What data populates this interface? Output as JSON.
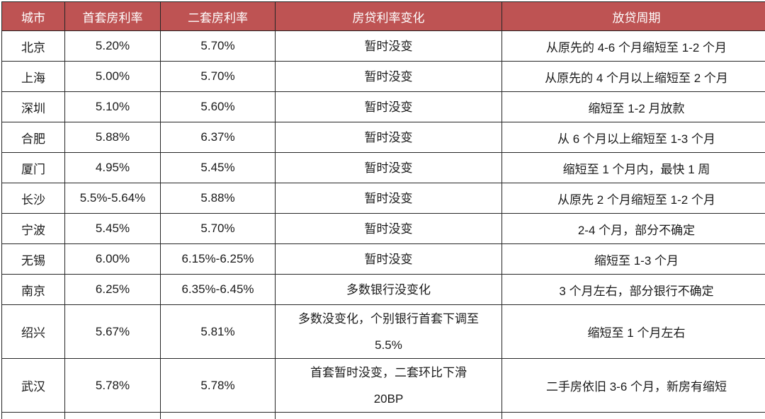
{
  "colors": {
    "page_bg": "#ffffff",
    "header_bg": "#be5353",
    "header_text": "#ffffff",
    "border": "#262626",
    "body_text": "#1a1a1a"
  },
  "chart_data": {
    "type": "table",
    "columns": [
      "城市",
      "首套房利率",
      "二套房利率",
      "房贷利率变化",
      "放贷周期"
    ],
    "rows": [
      {
        "city": "北京",
        "first_rate": "5.20%",
        "second_rate": "5.70%",
        "change": "暂时没变",
        "period": "从原先的 4-6 个月缩短至 1-2 个月"
      },
      {
        "city": "上海",
        "first_rate": "5.00%",
        "second_rate": "5.70%",
        "change": "暂时没变",
        "period": "从原先的 4 个月以上缩短至 2 个月"
      },
      {
        "city": "深圳",
        "first_rate": "5.10%",
        "second_rate": "5.60%",
        "change": "暂时没变",
        "period": "缩短至 1-2 月放款"
      },
      {
        "city": "合肥",
        "first_rate": "5.88%",
        "second_rate": "6.37%",
        "change": "暂时没变",
        "period": "从 6 个月以上缩短至 1-3 个月"
      },
      {
        "city": "厦门",
        "first_rate": "4.95%",
        "second_rate": "5.45%",
        "change": "暂时没变",
        "period": "缩短至 1 个月内，最快 1 周"
      },
      {
        "city": "长沙",
        "first_rate": "5.5%-5.64%",
        "second_rate": "5.88%",
        "change": "暂时没变",
        "period": "从原先 2 个月缩短至 1-2 个月"
      },
      {
        "city": "宁波",
        "first_rate": "5.45%",
        "second_rate": "5.70%",
        "change": "暂时没变",
        "period": "2-4 个月，部分不确定"
      },
      {
        "city": "无锡",
        "first_rate": "6.00%",
        "second_rate": "6.15%-6.25%",
        "change": "暂时没变",
        "period": "缩短至 1-3 个月"
      },
      {
        "city": "南京",
        "first_rate": "6.25%",
        "second_rate": "6.35%-6.45%",
        "change": "多数银行没变化",
        "period": "3 个月左右，部分银行不确定"
      },
      {
        "city": "绍兴",
        "first_rate": "5.67%",
        "second_rate": "5.81%",
        "change": "多数没变化，个别银行首套下调至",
        "change_line2": "5.5%",
        "period": "缩短至 1 个月左右",
        "tall": true
      },
      {
        "city": "武汉",
        "first_rate": "5.78%",
        "second_rate": "5.78%",
        "change": "首套暂时没变，二套环比下滑",
        "change_line2": "20BP",
        "period": "二手房依旧 3-6 个月，新房有缩短",
        "tall": true
      }
    ]
  }
}
